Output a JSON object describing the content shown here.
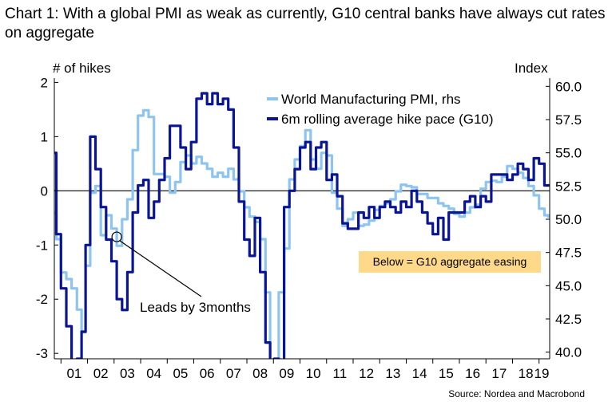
{
  "chart_data": {
    "type": "line",
    "title": "Chart 1: With a global PMI as weak as currently, G10 central banks have always cut rates on aggregate",
    "source": "Source: Nordea and Macrobond",
    "left_axis_label": "# of hikes",
    "right_axis_label": "Index",
    "left_ylim": [
      -3.1,
      2.05
    ],
    "right_ylim": [
      39.5,
      60.5
    ],
    "left_ticks": [
      "2",
      "1",
      "0",
      "-1",
      "-2",
      "-3"
    ],
    "left_tick_values": [
      2,
      1,
      0,
      -1,
      -2,
      -3
    ],
    "right_ticks": [
      "60.0",
      "57.5",
      "55.0",
      "52.5",
      "50.0",
      "47.5",
      "45.0",
      "42.5",
      "40.0"
    ],
    "right_tick_values": [
      60,
      57.5,
      55,
      52.5,
      50,
      47.5,
      45,
      42.5,
      40
    ],
    "x_ticks": [
      "01",
      "02",
      "03",
      "04",
      "05",
      "06",
      "07",
      "08",
      "09",
      "10",
      "11",
      "12",
      "13",
      "14",
      "15",
      "16",
      "17",
      "18",
      "19"
    ],
    "x_range": [
      2000.75,
      2019.4
    ],
    "legend": {
      "placement": "top-center"
    },
    "series": [
      {
        "name": "World Manufacturing PMI, rhs",
        "axis": "right",
        "color": "#8ec5f0",
        "x": [
          2000.75,
          2000.9,
          2001.1,
          2001.3,
          2001.5,
          2001.7,
          2001.85,
          2002.0,
          2002.2,
          2002.4,
          2002.6,
          2002.8,
          2003.0,
          2003.2,
          2003.4,
          2003.6,
          2003.8,
          2004.0,
          2004.2,
          2004.4,
          2004.6,
          2004.8,
          2005.0,
          2005.2,
          2005.4,
          2005.6,
          2005.8,
          2006.0,
          2006.2,
          2006.4,
          2006.6,
          2006.8,
          2007.0,
          2007.2,
          2007.4,
          2007.6,
          2007.8,
          2008.0,
          2008.2,
          2008.4,
          2008.6,
          2008.8,
          2008.95,
          2009.1,
          2009.3,
          2009.5,
          2009.7,
          2009.9,
          2010.1,
          2010.3,
          2010.5,
          2010.7,
          2010.9,
          2011.1,
          2011.3,
          2011.5,
          2011.7,
          2011.9,
          2012.1,
          2012.3,
          2012.5,
          2012.7,
          2012.9,
          2013.1,
          2013.3,
          2013.5,
          2013.7,
          2013.9,
          2014.1,
          2014.3,
          2014.5,
          2014.7,
          2014.9,
          2015.1,
          2015.3,
          2015.5,
          2015.7,
          2015.9,
          2016.1,
          2016.3,
          2016.5,
          2016.7,
          2016.9,
          2017.1,
          2017.3,
          2017.5,
          2017.7,
          2017.9,
          2018.1,
          2018.3,
          2018.5,
          2018.7,
          2018.9,
          2019.1,
          2019.3
        ],
        "values": [
          50.5,
          48.5,
          46.0,
          45.5,
          44.8,
          43.2,
          41.5,
          46.5,
          52.0,
          52.5,
          48.8,
          50.3,
          49.3,
          48.0,
          50.0,
          51.5,
          55.2,
          57.8,
          58.2,
          57.7,
          53.4,
          53.4,
          53.2,
          52.0,
          52.8,
          54.3,
          54.8,
          54.2,
          54.7,
          54.2,
          53.8,
          53.2,
          53.5,
          53.2,
          53.8,
          53.0,
          52.1,
          50.9,
          50.2,
          49.8,
          48.5,
          44.5,
          38.0,
          37.0,
          44.5,
          47.8,
          53.0,
          54.5,
          55.5,
          56.7,
          54.5,
          53.8,
          55.0,
          54.8,
          52.0,
          50.8,
          49.5,
          50.0,
          50.5,
          49.5,
          49.6,
          49.9,
          50.7,
          51.0,
          51.2,
          51.5,
          52.1,
          52.6,
          52.5,
          52.4,
          51.9,
          51.9,
          51.6,
          51.6,
          51.2,
          51.0,
          50.8,
          50.4,
          50.2,
          50.5,
          50.9,
          51.1,
          52.3,
          52.8,
          52.9,
          52.8,
          53.2,
          54.0,
          53.8,
          53.5,
          53.1,
          52.5,
          51.8,
          50.8,
          50.3
        ],
        "last_point": [
          2019.4,
          50.2
        ]
      },
      {
        "name": "6m rolling average hike pace (G10)",
        "axis": "left",
        "color": "#0a1596",
        "x": [
          2000.75,
          2000.9,
          2001.1,
          2001.3,
          2001.5,
          2001.7,
          2001.85,
          2002.0,
          2002.2,
          2002.4,
          2002.6,
          2002.8,
          2003.0,
          2003.2,
          2003.4,
          2003.6,
          2003.8,
          2004.0,
          2004.2,
          2004.4,
          2004.6,
          2004.8,
          2005.0,
          2005.2,
          2005.4,
          2005.6,
          2005.8,
          2006.0,
          2006.2,
          2006.4,
          2006.6,
          2006.8,
          2007.0,
          2007.2,
          2007.4,
          2007.6,
          2007.8,
          2008.0,
          2008.2,
          2008.4,
          2008.6,
          2008.8,
          2008.95,
          2009.1,
          2009.3,
          2009.5,
          2009.7,
          2009.9,
          2010.1,
          2010.3,
          2010.5,
          2010.7,
          2010.9,
          2011.1,
          2011.3,
          2011.5,
          2011.7,
          2011.9,
          2012.1,
          2012.3,
          2012.5,
          2012.7,
          2012.9,
          2013.1,
          2013.3,
          2013.5,
          2013.7,
          2013.9,
          2014.1,
          2014.3,
          2014.5,
          2014.7,
          2014.9,
          2015.1,
          2015.3,
          2015.5,
          2015.7,
          2015.9,
          2016.1,
          2016.3,
          2016.5,
          2016.7,
          2016.9,
          2017.1,
          2017.3,
          2017.5,
          2017.7,
          2017.9,
          2018.1,
          2018.3,
          2018.5,
          2018.7,
          2018.9,
          2019.1,
          2019.3
        ],
        "values": [
          0.7,
          -0.8,
          -1.8,
          -2.5,
          -3.2,
          -3.1,
          -2.6,
          -1.0,
          1.0,
          0.4,
          -0.3,
          -0.9,
          -1.3,
          -2.0,
          -2.2,
          -1.5,
          -0.4,
          0.1,
          0.2,
          -0.5,
          -0.2,
          0.2,
          0.6,
          1.2,
          1.2,
          0.8,
          0.4,
          0.9,
          1.7,
          1.8,
          1.6,
          1.8,
          1.6,
          1.7,
          1.5,
          0.8,
          -0.2,
          -0.9,
          -1.2,
          -0.5,
          -1.5,
          -2.8,
          -3.2,
          -3.1,
          -3.3,
          -0.3,
          0.0,
          0.4,
          0.8,
          0.9,
          0.4,
          0.8,
          0.9,
          0.2,
          0.3,
          -0.1,
          -0.6,
          -0.7,
          -0.7,
          -0.4,
          -0.5,
          -0.3,
          -0.5,
          -0.3,
          -0.2,
          -0.3,
          -0.4,
          -0.2,
          -0.3,
          0.0,
          -0.2,
          -0.4,
          -0.6,
          -0.8,
          -0.5,
          -0.9,
          -0.4,
          -0.4,
          -0.4,
          -0.2,
          -0.1,
          -0.3,
          -0.1,
          -0.2,
          0.3,
          0.3,
          0.3,
          0.2,
          0.3,
          0.5,
          0.4,
          0.2,
          0.6,
          0.5,
          0.1
        ],
        "last_point": [
          2019.4,
          0.1
        ]
      }
    ],
    "annotations": [
      {
        "text": "Leads by 3months",
        "points_to": [
          2003.1,
          -0.85
        ]
      },
      {
        "text": "Below = G10 aggregate easing"
      }
    ]
  },
  "colors": {
    "pmi": "#8ec5f0",
    "hike": "#0a1596",
    "zero_line": "#000000",
    "easing_box": "#ffd98a"
  }
}
